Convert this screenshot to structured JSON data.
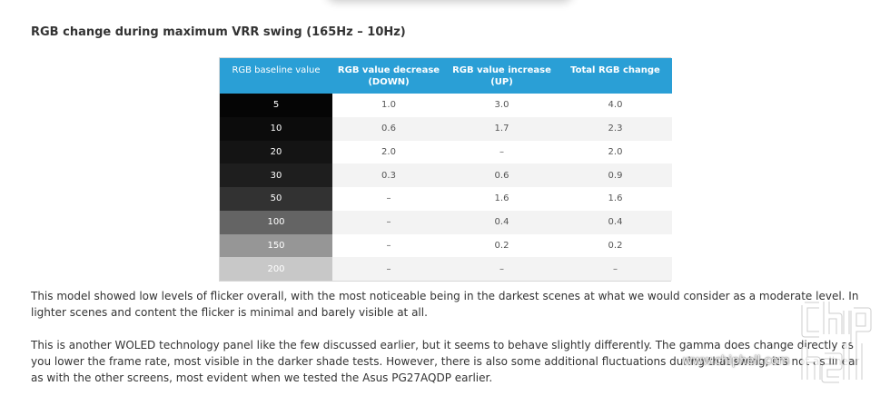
{
  "heading": "RGB change during maximum VRR swing (165Hz – 10Hz)",
  "table": {
    "headers": {
      "h1": "RGB baseline value",
      "h2_line1": "RGB value decrease",
      "h2_line2": "(DOWN)",
      "h3_line1": "RGB value increase",
      "h3_line2": "(UP)",
      "h4": "Total RGB change"
    },
    "header_color": "#2a9fd6",
    "rows": [
      {
        "base": "5",
        "shade": "#050505",
        "down": "1.0",
        "up": "3.0",
        "total": "4.0"
      },
      {
        "base": "10",
        "shade": "#0c0c0c",
        "down": "0.6",
        "up": "1.7",
        "total": "2.3"
      },
      {
        "base": "20",
        "shade": "#141414",
        "down": "2.0",
        "up": "–",
        "total": "2.0"
      },
      {
        "base": "30",
        "shade": "#1e1e1e",
        "down": "0.3",
        "up": "0.6",
        "total": "0.9"
      },
      {
        "base": "50",
        "shade": "#323232",
        "down": "–",
        "up": "1.6",
        "total": "1.6"
      },
      {
        "base": "100",
        "shade": "#646464",
        "down": "–",
        "up": "0.4",
        "total": "0.4"
      },
      {
        "base": "150",
        "shade": "#969696",
        "down": "–",
        "up": "0.2",
        "total": "0.2"
      },
      {
        "base": "200",
        "shade": "#c8c8c8",
        "down": "–",
        "up": "–",
        "total": "–"
      }
    ]
  },
  "paragraph1": "This model showed low levels of flicker overall, with the most noticeable being in the darkest scenes at what we would consider as a moderate level. In lighter scenes and content the flicker is minimal and barely visible at all.",
  "paragraph2": "This is another WOLED technology panel like the few discussed earlier, but it seems to behave slightly differently. The gamma does change directly as you lower the frame rate, most visible in the darker shade tests. However, there is also some additional fluctuations during that swing, it's not as linear as with the other screens, most evident when we tested the Asus PG27AQDP earlier.",
  "watermark": {
    "text": "www.chiphell.com",
    "logo_icon": "chiphell-logo-icon"
  }
}
